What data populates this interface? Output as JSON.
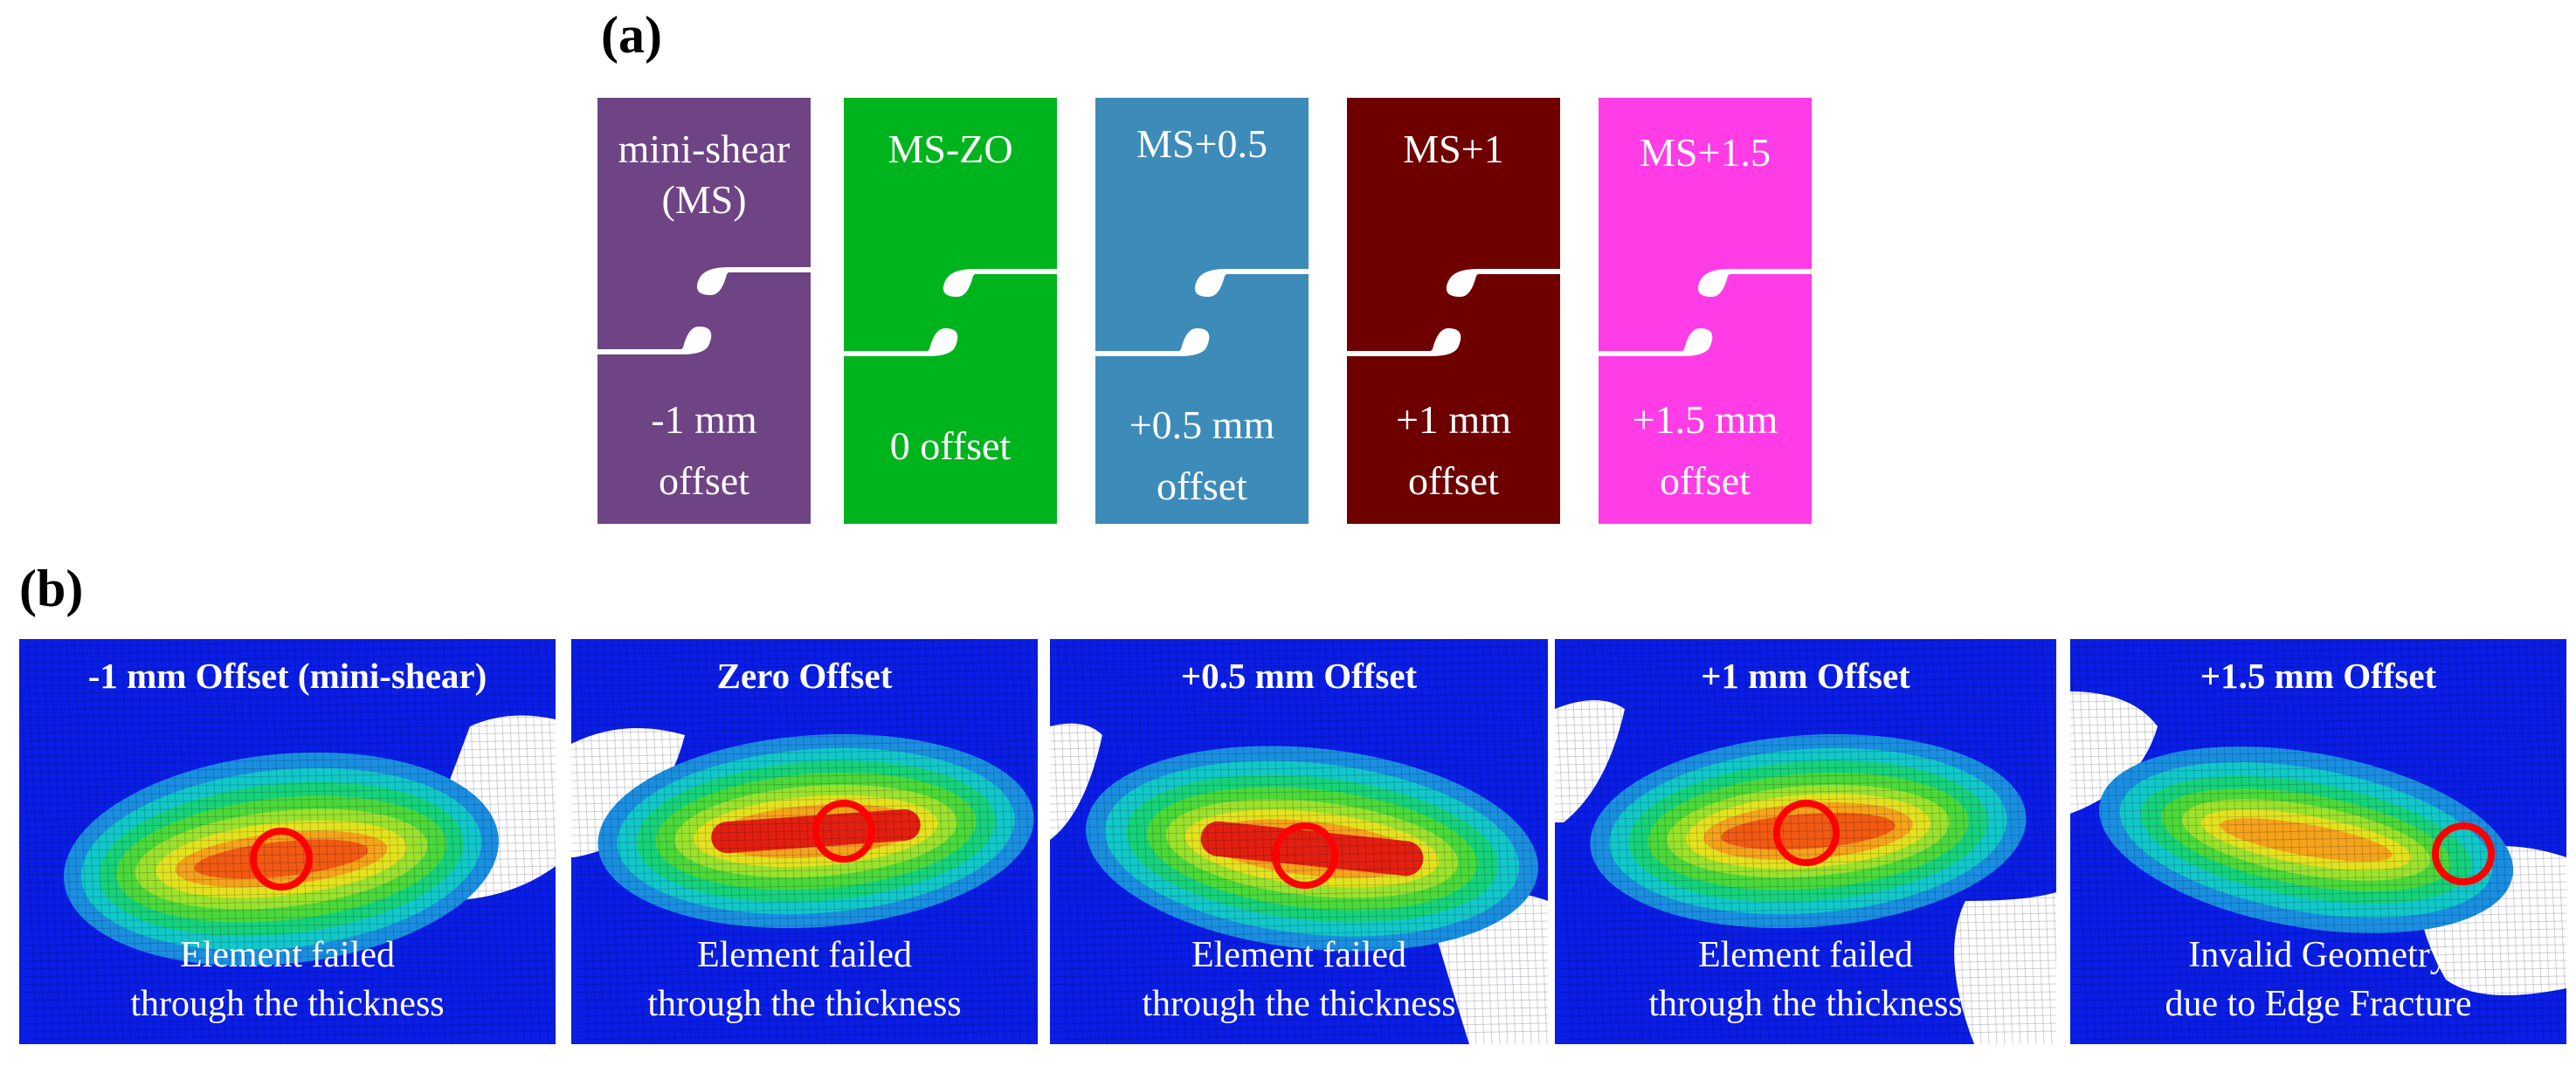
{
  "figure": {
    "panel_a_label": "(a)",
    "panel_b_label": "(b)"
  },
  "specimens": [
    {
      "title": "mini-shear\n(MS)",
      "offset": "-1 mm\noffset",
      "color": "#6e4484"
    },
    {
      "title": "MS-ZO",
      "offset": "0 offset",
      "color": "#00b41e"
    },
    {
      "title": "MS+0.5",
      "offset": "+0.5 mm\noffset",
      "color": "#3d8bb9"
    },
    {
      "title": "MS+1",
      "offset": "+1 mm\noffset",
      "color": "#6e0000"
    },
    {
      "title": "MS+1.5",
      "offset": "+1.5 mm\noffset",
      "color": "#ff3ce6"
    }
  ],
  "simulations": [
    {
      "title": "-1 mm Offset (mini-shear)",
      "caption": "Element failed\nthrough the thickness"
    },
    {
      "title": "Zero  Offset",
      "caption": "Element failed\nthrough the thickness"
    },
    {
      "title": "+0.5 mm Offset",
      "caption": "Element failed\nthrough the thickness"
    },
    {
      "title": "+1 mm Offset",
      "caption": "Element failed\nthrough the thickness"
    },
    {
      "title": "+1.5 mm Offset",
      "caption": "Invalid Geometry\ndue to Edge Fracture"
    }
  ],
  "colors": {
    "mesh_background": "#0a1ee6",
    "failure_marker": "#ff0000",
    "contour_scale": [
      "#1a8fe0",
      "#12c8c8",
      "#17d27a",
      "#4cd93a",
      "#9be22c",
      "#e4e21e",
      "#f5a31a",
      "#f25a12",
      "#e3200f"
    ]
  }
}
